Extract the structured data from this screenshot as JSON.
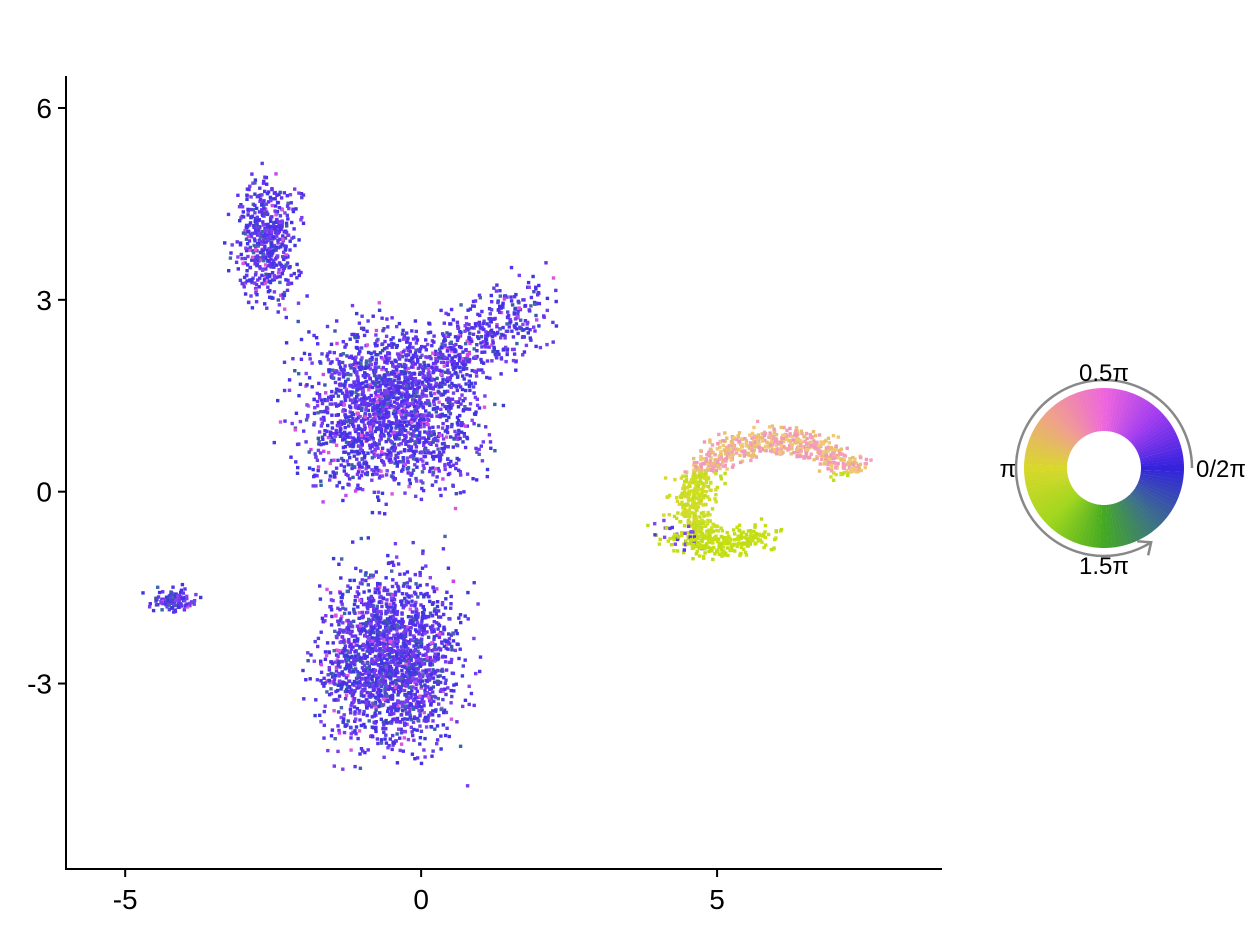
{
  "chart_data": {
    "type": "scatter",
    "title": "",
    "xlabel": "",
    "ylabel": "",
    "xlim": [
      -6,
      8.8
    ],
    "ylim": [
      -5.9,
      6.5
    ],
    "xticks": [
      "-5",
      "0",
      "5"
    ],
    "xtick_values": [
      -5,
      0,
      5
    ],
    "yticks": [
      "-3",
      "0",
      "3",
      "6"
    ],
    "ytick_values": [
      -3,
      0,
      3,
      6
    ],
    "grid": false,
    "legend": {
      "type": "circular color wheel",
      "placement": "right",
      "labels": [
        "0.5π",
        "π",
        "1.5π",
        "0/2π"
      ],
      "colors": {
        "angle_0": "#3322dd",
        "angle_0.5pi": "#ee66dd",
        "angle_pi": "#d8d82a",
        "angle_1.5pi": "#44aa22"
      }
    },
    "clusters": [
      {
        "name": "top-left island",
        "center": [
          -2.6,
          3.9
        ],
        "spread": [
          0.45,
          0.85
        ],
        "dominant_color": "#5533ee"
      },
      {
        "name": "main mass upper",
        "center": [
          -0.5,
          1.3
        ],
        "spread": [
          1.3,
          1.1
        ],
        "dominant_color": "#5533ee"
      },
      {
        "name": "main mass lower",
        "center": [
          -0.5,
          -2.6
        ],
        "spread": [
          1.0,
          1.2
        ],
        "dominant_color": "#5533ee"
      },
      {
        "name": "left satellite",
        "center": [
          -4.2,
          -1.7
        ],
        "spread": [
          0.3,
          0.15
        ],
        "dominant_color": "#5544dd"
      },
      {
        "name": "right arc",
        "center": [
          6.0,
          0.0
        ],
        "spread": [
          1.2,
          0.6
        ],
        "dominant_color": "#d8d82a"
      }
    ]
  }
}
